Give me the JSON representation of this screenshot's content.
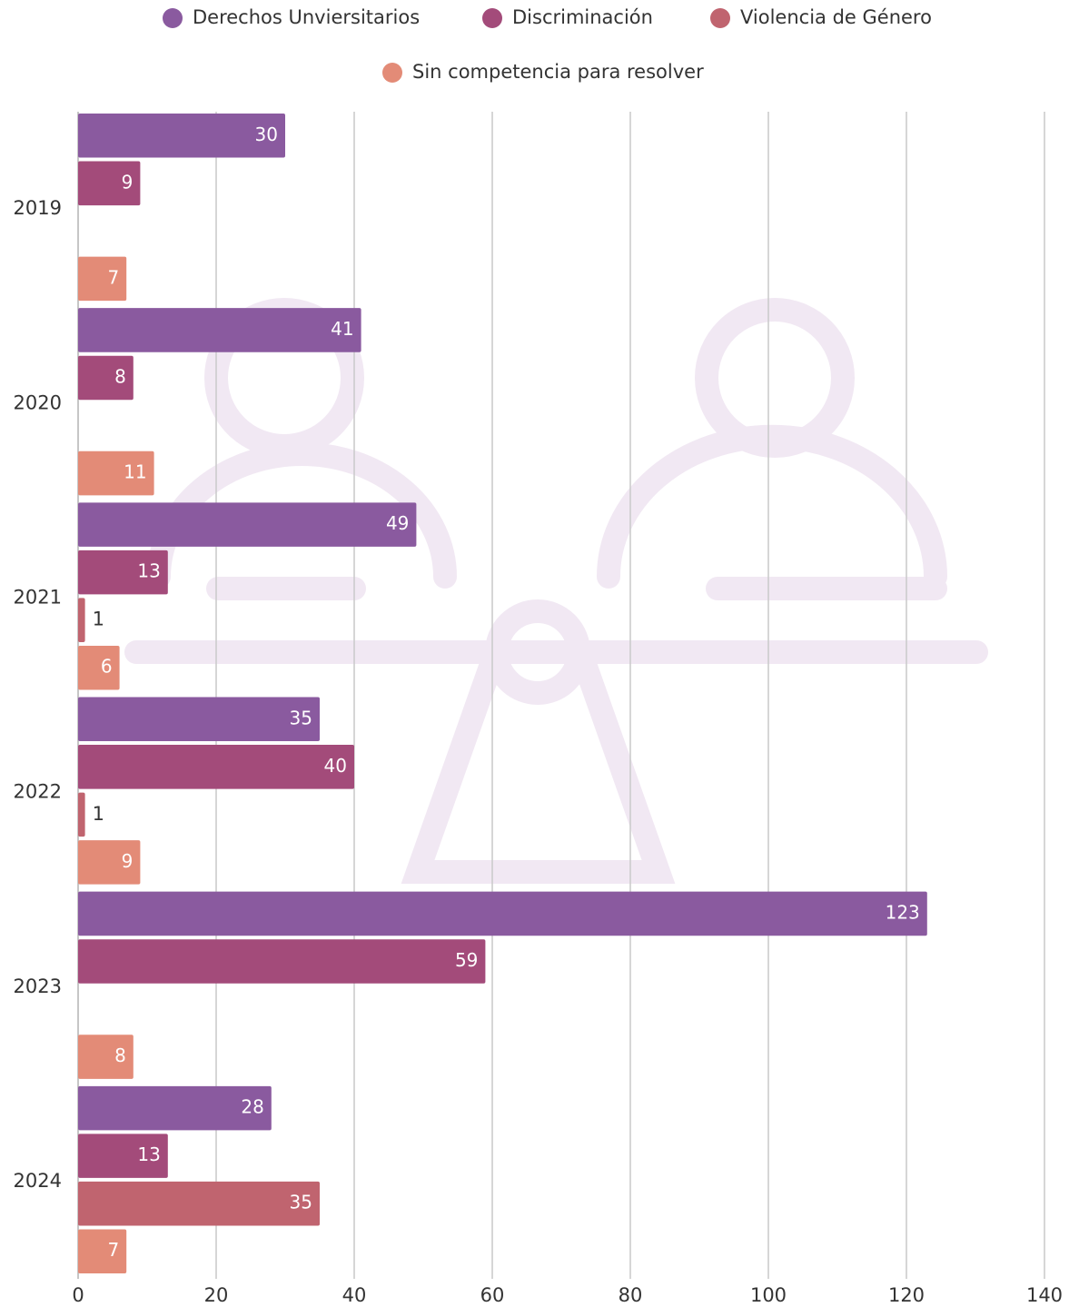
{
  "chart_data": {
    "type": "barh",
    "categories": [
      "2019",
      "2020",
      "2021",
      "2022",
      "2023",
      "2024"
    ],
    "series": [
      {
        "name": "Derechos Unviersitarios",
        "color": "#8a5a9f",
        "values": [
          30,
          41,
          49,
          35,
          123,
          28
        ]
      },
      {
        "name": "Discriminación",
        "color": "#a34b7a",
        "values": [
          9,
          8,
          13,
          40,
          59,
          13
        ]
      },
      {
        "name": "Violencia de Género",
        "color": "#c0646f",
        "values": [
          null,
          null,
          1,
          1,
          null,
          35
        ]
      },
      {
        "name": "Sin competencia para resolver",
        "color": "#e38b77",
        "values": [
          7,
          11,
          6,
          9,
          8,
          7
        ]
      }
    ],
    "xlim": [
      0,
      140
    ],
    "xticks": [
      0,
      20,
      40,
      60,
      80,
      100,
      120,
      140
    ],
    "grid": true
  }
}
